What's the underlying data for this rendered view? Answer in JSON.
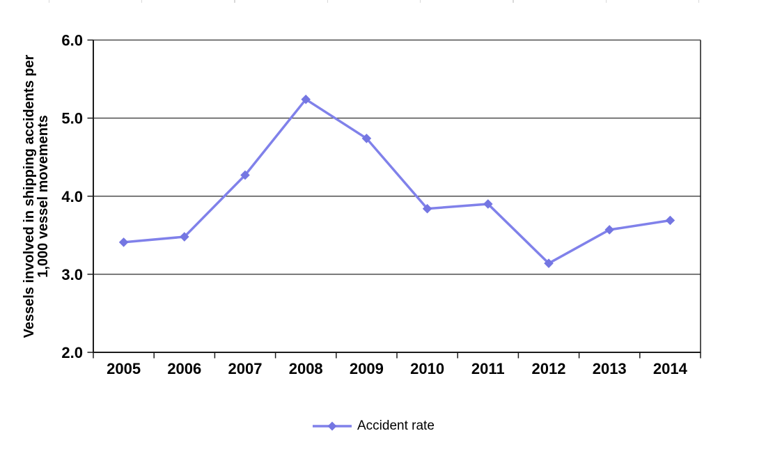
{
  "chart_data": {
    "type": "line",
    "title": "",
    "categories": [
      "2005",
      "2006",
      "2007",
      "2008",
      "2009",
      "2010",
      "2011",
      "2012",
      "2013",
      "2014"
    ],
    "series": [
      {
        "name": "Accident rate",
        "values": [
          3.41,
          3.48,
          4.27,
          5.24,
          4.74,
          3.84,
          3.9,
          3.14,
          3.57,
          3.69
        ]
      }
    ],
    "xlabel": "",
    "ylabel": "Vessels involved in shipping accidents per 1,000 vessel movements",
    "ylabel_lines": [
      "Vessels involved in shipping accidents per",
      "1,000 vessel movements"
    ],
    "ylim": [
      2.0,
      6.0
    ],
    "y_tick_values": [
      2.0,
      3.0,
      4.0,
      5.0,
      6.0
    ],
    "y_tick_labels": [
      "2.0",
      "3.0",
      "4.0",
      "5.0",
      "6.0"
    ],
    "grid": "horizontal",
    "legend_position": "bottom-center",
    "marker": "diamond"
  },
  "legend": {
    "label": "Accident rate"
  },
  "colors": {
    "series_line": "#8081EA",
    "series_marker": "#7476E2",
    "gridline": "#4d4d4d",
    "axis": "#1a1a1a",
    "label": "#000000",
    "top_edge_tick": "#d9d9d9"
  },
  "artifacts": {
    "top_edge_tick_count": 8
  }
}
